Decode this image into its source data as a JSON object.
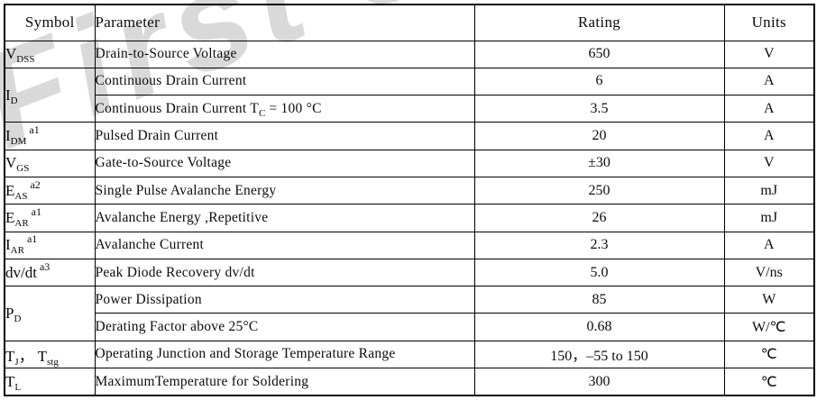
{
  "watermark": {
    "text": "First S",
    "color": "#d9d9d9"
  },
  "colors": {
    "border": "#000000",
    "text": "#0c0c0c",
    "background": "#ffffff"
  },
  "table": {
    "columns": [
      "Symbol",
      "Parameter",
      "Rating",
      "Units"
    ],
    "rows": [
      {
        "symbol": [
          {
            "t": "V"
          },
          {
            "t": "DSS",
            "s": "sub"
          }
        ],
        "parameter": [
          {
            "t": "Drain-to-Source Voltage"
          }
        ],
        "rating": "650",
        "units": "V"
      },
      {
        "symbol": [
          {
            "t": "I"
          },
          {
            "t": "D",
            "s": "sub"
          }
        ],
        "rowspan": 2,
        "parameter": [
          {
            "t": "Continuous Drain Current"
          }
        ],
        "rating": "6",
        "units": "A"
      },
      {
        "symbol": null,
        "parameter": [
          {
            "t": "Continuous Drain Current T"
          },
          {
            "t": "C",
            "s": "sub"
          },
          {
            "t": " = 100 °C"
          }
        ],
        "rating": "3.5",
        "units": "A"
      },
      {
        "symbol": [
          {
            "t": "I"
          },
          {
            "t": "DM",
            "s": "sub"
          },
          {
            "t": "a1",
            "s": "sup"
          }
        ],
        "parameter": [
          {
            "t": "Pulsed Drain Current"
          }
        ],
        "rating": "20",
        "units": "A"
      },
      {
        "symbol": [
          {
            "t": "V"
          },
          {
            "t": "GS",
            "s": "sub"
          }
        ],
        "parameter": [
          {
            "t": "Gate-to-Source Voltage"
          }
        ],
        "rating": "±30",
        "units": "V"
      },
      {
        "symbol": [
          {
            "t": "E"
          },
          {
            "t": "AS",
            "s": "sub"
          },
          {
            "t": "a2",
            "s": "sup"
          }
        ],
        "parameter": [
          {
            "t": "Single Pulse Avalanche Energy"
          }
        ],
        "rating": "250",
        "units": "mJ"
      },
      {
        "symbol": [
          {
            "t": "E"
          },
          {
            "t": "AR",
            "s": "sub"
          },
          {
            "t": "a1",
            "s": "sup"
          }
        ],
        "parameter": [
          {
            "t": "Avalanche Energy ,Repetitive"
          }
        ],
        "rating": "26",
        "units": "mJ"
      },
      {
        "symbol": [
          {
            "t": "I"
          },
          {
            "t": "AR",
            "s": "sub"
          },
          {
            "t": "a1",
            "s": "sup"
          }
        ],
        "parameter": [
          {
            "t": "Avalanche Current"
          }
        ],
        "rating": "2.3",
        "units": "A"
      },
      {
        "symbol": [
          {
            "t": "dv/dt"
          },
          {
            "t": "a3",
            "s": "sup"
          }
        ],
        "parameter": [
          {
            "t": "Peak Diode Recovery dv/dt"
          }
        ],
        "rating": "5.0",
        "units": "V/ns"
      },
      {
        "symbol": [
          {
            "t": "P"
          },
          {
            "t": "D",
            "s": "sub"
          }
        ],
        "rowspan": 2,
        "parameter": [
          {
            "t": "Power Dissipation"
          }
        ],
        "rating": "85",
        "units": "W"
      },
      {
        "symbol": null,
        "parameter": [
          {
            "t": "Derating Factor above 25°C"
          }
        ],
        "rating": "0.68",
        "units": "W/℃"
      },
      {
        "symbol": [
          {
            "t": "T"
          },
          {
            "t": "J",
            "s": "sub"
          },
          {
            "t": "， "
          },
          {
            "t": "T"
          },
          {
            "t": "stg",
            "s": "sub"
          }
        ],
        "parameter": [
          {
            "t": "Operating Junction and Storage Temperature Range"
          }
        ],
        "rating": "150，–55 to 150",
        "units": "℃"
      },
      {
        "symbol": [
          {
            "t": "T"
          },
          {
            "t": "L",
            "s": "sub"
          }
        ],
        "parameter": [
          {
            "t": "MaximumTemperature for Soldering"
          }
        ],
        "rating": "300",
        "units": "℃"
      }
    ]
  }
}
